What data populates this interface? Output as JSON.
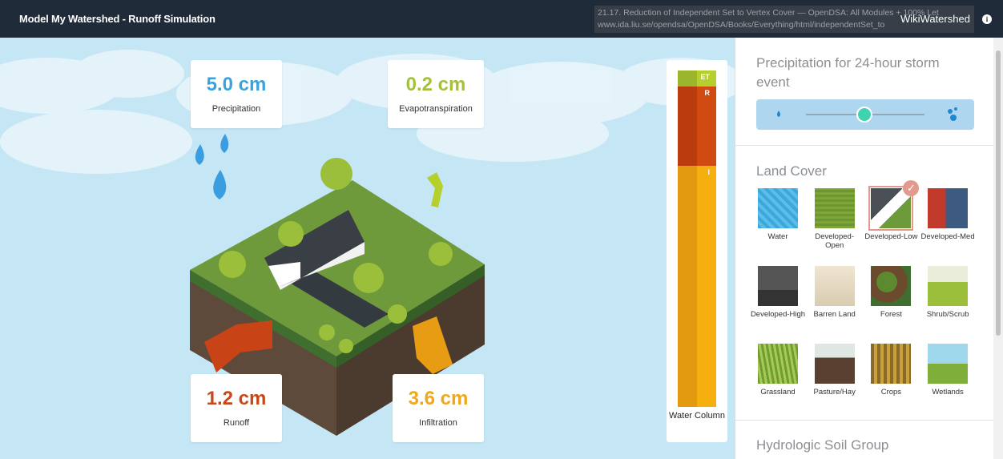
{
  "header": {
    "title": "Model My Watershed - Runoff Simulation",
    "brand": "WikiWatershed",
    "tooltip": {
      "title": "21.17. Reduction of Independent Set to Vertex Cover — OpenDSA: All Modules + 100% Let",
      "url": "www.ida.liu.se/opendsa/OpenDSA/Books/Everything/html/independentSet_to"
    }
  },
  "stats": [
    {
      "value": "5.0 cm",
      "label": "Precipitation"
    },
    {
      "value": "0.2 cm",
      "label": "Evapotranspiration"
    },
    {
      "value": "1.2 cm",
      "label": "Runoff"
    },
    {
      "value": "3.6 cm",
      "label": "Infiltration"
    }
  ],
  "water_column": {
    "segments": [
      "ET",
      "R",
      "I"
    ],
    "label": "Water Column"
  },
  "sidebar": {
    "precipitation": {
      "title": "Precipitation for 24-hour storm event"
    },
    "land_cover": {
      "title": "Land Cover",
      "selected": 2,
      "items": [
        "Water",
        "Developed-Open",
        "Developed-Low",
        "Developed-Med",
        "Developed-High",
        "Barren Land",
        "Forest",
        "Shrub/Scrub",
        "Grassland",
        "Pasture/Hay",
        "Crops",
        "Wetlands"
      ]
    },
    "soil_group": {
      "title": "Hydrologic Soil Group"
    }
  }
}
